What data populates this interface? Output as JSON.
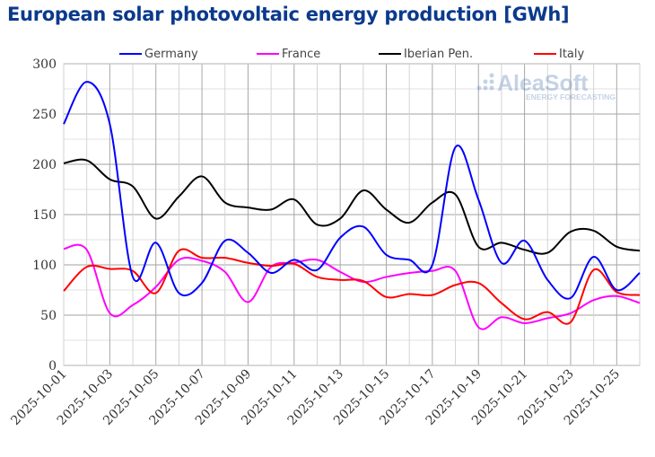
{
  "chart_data": {
    "type": "line",
    "title": "European solar photovoltaic energy production [GWh]",
    "watermark": {
      "name": "AleaSoft",
      "tagline": "ENERGY FORECASTING"
    },
    "xlabel": "",
    "ylabel": "",
    "ylim": [
      0,
      300
    ],
    "yticks": [
      0,
      50,
      100,
      150,
      200,
      250,
      300
    ],
    "grid": true,
    "legend_position": "top",
    "x": [
      "2025-10-01",
      "2025-10-02",
      "2025-10-03",
      "2025-10-04",
      "2025-10-05",
      "2025-10-06",
      "2025-10-07",
      "2025-10-08",
      "2025-10-09",
      "2025-10-10",
      "2025-10-11",
      "2025-10-12",
      "2025-10-13",
      "2025-10-14",
      "2025-10-15",
      "2025-10-16",
      "2025-10-17",
      "2025-10-18",
      "2025-10-19",
      "2025-10-20",
      "2025-10-21",
      "2025-10-22",
      "2025-10-23",
      "2025-10-24",
      "2025-10-25",
      "2025-10-26"
    ],
    "xtick_labels": [
      "2025-10-01",
      "2025-10-03",
      "2025-10-05",
      "2025-10-07",
      "2025-10-09",
      "2025-10-11",
      "2025-10-13",
      "2025-10-15",
      "2025-10-17",
      "2025-10-19",
      "2025-10-21",
      "2025-10-23",
      "2025-10-25"
    ],
    "series": [
      {
        "name": "Germany",
        "color": "#0000ff",
        "values": [
          240,
          282,
          240,
          88,
          122,
          72,
          82,
          124,
          112,
          92,
          105,
          95,
          127,
          138,
          110,
          105,
          100,
          217,
          165,
          102,
          124,
          85,
          67,
          108,
          75,
          92
        ]
      },
      {
        "name": "France",
        "color": "#ff00ff",
        "values": [
          116,
          115,
          52,
          60,
          78,
          105,
          104,
          93,
          63,
          98,
          102,
          105,
          93,
          83,
          88,
          92,
          94,
          94,
          38,
          48,
          42,
          47,
          52,
          65,
          69,
          62
        ]
      },
      {
        "name": "Iberian Pen.",
        "color": "#000000",
        "values": [
          201,
          204,
          185,
          178,
          146,
          168,
          188,
          162,
          157,
          155,
          165,
          140,
          146,
          174,
          155,
          142,
          162,
          170,
          118,
          122,
          115,
          112,
          133,
          134,
          118,
          114
        ]
      },
      {
        "name": "Italy",
        "color": "#ff0000",
        "values": [
          74,
          98,
          96,
          94,
          72,
          114,
          107,
          107,
          102,
          99,
          101,
          88,
          85,
          84,
          68,
          71,
          70,
          80,
          82,
          62,
          46,
          53,
          43,
          95,
          73,
          70
        ]
      }
    ]
  }
}
